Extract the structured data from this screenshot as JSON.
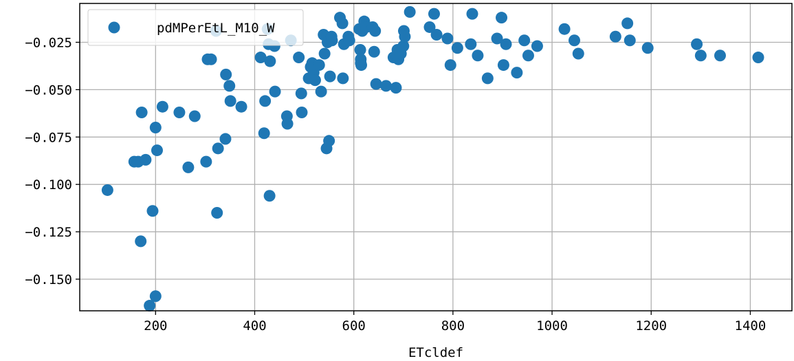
{
  "chart_data": {
    "type": "scatter",
    "title": "",
    "xlabel": "ETcldef",
    "ylabel": "",
    "xlim": [
      47,
      1484
    ],
    "ylim": [
      -0.1667,
      -0.0045
    ],
    "grid": true,
    "legend_position": "top-left",
    "x_ticks": [
      200,
      400,
      600,
      800,
      1000,
      1200,
      1400
    ],
    "x_tick_labels": [
      "200",
      "400",
      "600",
      "800",
      "1000",
      "1200",
      "1400"
    ],
    "y_ticks": [
      -0.025,
      -0.05,
      -0.075,
      -0.1,
      -0.125,
      -0.15
    ],
    "y_tick_labels": [
      "−0.025",
      "−0.050",
      "−0.075",
      "−0.100",
      "−0.125",
      "−0.150"
    ],
    "marker_color": "#1f77b4",
    "series": [
      {
        "name": "pdMPerEtL_M10_W",
        "points": [
          [
            103,
            -0.103
          ],
          [
            157,
            -0.088
          ],
          [
            165,
            -0.088
          ],
          [
            170,
            -0.13
          ],
          [
            172,
            -0.062
          ],
          [
            180,
            -0.087
          ],
          [
            188,
            -0.164
          ],
          [
            194,
            -0.114
          ],
          [
            200,
            -0.07
          ],
          [
            200,
            -0.159
          ],
          [
            203,
            -0.082
          ],
          [
            214,
            -0.059
          ],
          [
            248,
            -0.062
          ],
          [
            266,
            -0.091
          ],
          [
            279,
            -0.064
          ],
          [
            302,
            -0.088
          ],
          [
            305,
            -0.034
          ],
          [
            312,
            -0.034
          ],
          [
            322,
            -0.019
          ],
          [
            324,
            -0.115
          ],
          [
            326,
            -0.081
          ],
          [
            341,
            -0.076
          ],
          [
            342,
            -0.042
          ],
          [
            349,
            -0.048
          ],
          [
            351,
            -0.056
          ],
          [
            373,
            -0.059
          ],
          [
            412,
            -0.033
          ],
          [
            419,
            -0.073
          ],
          [
            421,
            -0.056
          ],
          [
            426,
            -0.018
          ],
          [
            428,
            -0.026
          ],
          [
            430,
            -0.106
          ],
          [
            431,
            -0.035
          ],
          [
            440,
            -0.027
          ],
          [
            441,
            -0.051
          ],
          [
            465,
            -0.064
          ],
          [
            466,
            -0.068
          ],
          [
            473,
            -0.024
          ],
          [
            489,
            -0.033
          ],
          [
            494,
            -0.052
          ],
          [
            495,
            -0.062
          ],
          [
            509,
            -0.044
          ],
          [
            513,
            -0.038
          ],
          [
            516,
            -0.036
          ],
          [
            519,
            -0.041
          ],
          [
            522,
            -0.045
          ],
          [
            530,
            -0.037
          ],
          [
            534,
            -0.051
          ],
          [
            539,
            -0.021
          ],
          [
            541,
            -0.031
          ],
          [
            545,
            -0.081
          ],
          [
            547,
            -0.025
          ],
          [
            550,
            -0.077
          ],
          [
            552,
            -0.043
          ],
          [
            555,
            -0.022
          ],
          [
            556,
            -0.024
          ],
          [
            572,
            -0.012
          ],
          [
            577,
            -0.015
          ],
          [
            578,
            -0.044
          ],
          [
            580,
            -0.026
          ],
          [
            589,
            -0.022
          ],
          [
            591,
            -0.024
          ],
          [
            611,
            -0.018
          ],
          [
            613,
            -0.029
          ],
          [
            614,
            -0.036
          ],
          [
            614,
            -0.034
          ],
          [
            615,
            -0.037
          ],
          [
            617,
            -0.019
          ],
          [
            621,
            -0.014
          ],
          [
            625,
            -0.017
          ],
          [
            638,
            -0.017
          ],
          [
            641,
            -0.03
          ],
          [
            643,
            -0.019
          ],
          [
            645,
            -0.047
          ],
          [
            665,
            -0.048
          ],
          [
            680,
            -0.033
          ],
          [
            685,
            -0.049
          ],
          [
            688,
            -0.029
          ],
          [
            690,
            -0.034
          ],
          [
            695,
            -0.031
          ],
          [
            700,
            -0.027
          ],
          [
            701,
            -0.019
          ],
          [
            703,
            -0.022
          ],
          [
            713,
            -0.009
          ],
          [
            753,
            -0.017
          ],
          [
            762,
            -0.01
          ],
          [
            767,
            -0.021
          ],
          [
            789,
            -0.023
          ],
          [
            795,
            -0.037
          ],
          [
            809,
            -0.028
          ],
          [
            836,
            -0.026
          ],
          [
            839,
            -0.01
          ],
          [
            850,
            -0.032
          ],
          [
            870,
            -0.044
          ],
          [
            889,
            -0.023
          ],
          [
            898,
            -0.012
          ],
          [
            902,
            -0.037
          ],
          [
            907,
            -0.026
          ],
          [
            929,
            -0.041
          ],
          [
            944,
            -0.024
          ],
          [
            952,
            -0.032
          ],
          [
            970,
            -0.027
          ],
          [
            1025,
            -0.018
          ],
          [
            1045,
            -0.024
          ],
          [
            1053,
            -0.031
          ],
          [
            1128,
            -0.022
          ],
          [
            1152,
            -0.015
          ],
          [
            1157,
            -0.024
          ],
          [
            1193,
            -0.028
          ],
          [
            1292,
            -0.026
          ],
          [
            1300,
            -0.032
          ],
          [
            1339,
            -0.032
          ],
          [
            1416,
            -0.033
          ]
        ]
      }
    ]
  }
}
